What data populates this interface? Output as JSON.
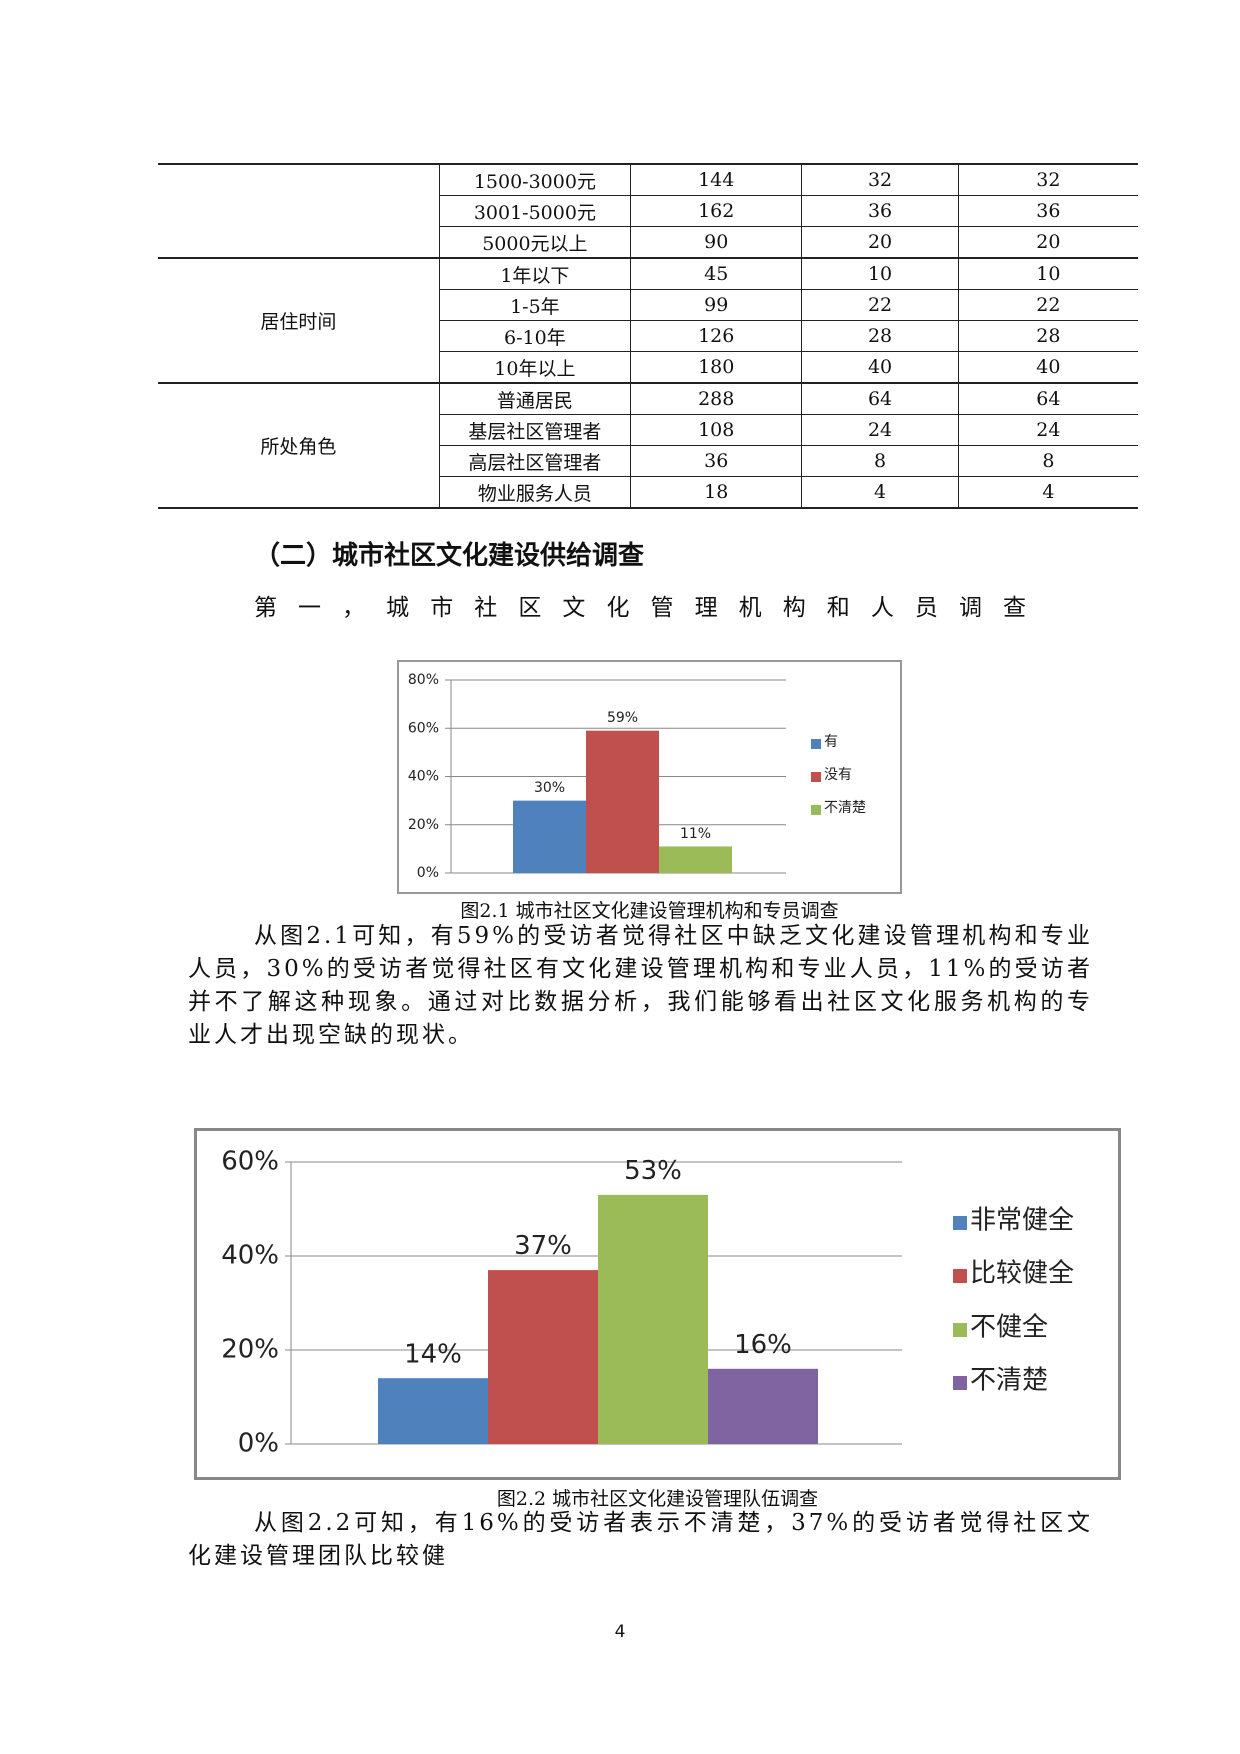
{
  "table": {
    "groups": [
      {
        "rows": [
          [
            "1500-3000元",
            144,
            32,
            32
          ],
          [
            "3001-5000元",
            162,
            36,
            36
          ],
          [
            "5000元以上",
            90,
            20,
            20
          ]
        ]
      },
      {
        "label": "居住时间",
        "rows": [
          [
            "1年以下",
            45,
            10,
            10
          ],
          [
            "1-5年",
            99,
            22,
            22
          ],
          [
            "6-10年",
            126,
            28,
            28
          ],
          [
            "10年以上",
            180,
            40,
            40
          ]
        ]
      },
      {
        "label": "所处角色",
        "rows": [
          [
            "普通居民",
            288,
            64,
            64
          ],
          [
            "基层社区管理者",
            108,
            24,
            24
          ],
          [
            "高层社区管理者",
            36,
            8,
            8
          ],
          [
            "物业服务人员",
            18,
            4,
            4
          ]
        ]
      }
    ]
  },
  "heading": "（二）城市社区文化建设供给调查",
  "subheading": "第一，城市社区文化管理机构和人员调查",
  "charts": [
    {
      "type": "bar",
      "caption": "图2.1 城市社区文化建设管理机构和专员调查",
      "grid": true,
      "ylim": [
        0,
        80
      ],
      "yticks": [
        {
          "value": 0,
          "label": "0%"
        },
        {
          "value": 20,
          "label": "20%"
        },
        {
          "value": 40,
          "label": "40%"
        },
        {
          "value": 60,
          "label": "60%"
        },
        {
          "value": 80,
          "label": "80%"
        }
      ],
      "series": [
        {
          "name": "有",
          "color": "#4f81bd",
          "values": [
            30
          ],
          "value_labels": [
            "30%"
          ]
        },
        {
          "name": "没有",
          "color": "#c0504d",
          "values": [
            59
          ],
          "value_labels": [
            "59%"
          ]
        },
        {
          "name": "不清楚",
          "color": "#9bbb59",
          "values": [
            11
          ],
          "value_labels": [
            "11%"
          ]
        }
      ]
    },
    {
      "type": "bar",
      "caption": "图2.2 城市社区文化建设管理队伍调查",
      "grid": true,
      "ylim": [
        0,
        60
      ],
      "yticks": [
        {
          "value": 0,
          "label": "0%"
        },
        {
          "value": 20,
          "label": "20%"
        },
        {
          "value": 40,
          "label": "40%"
        },
        {
          "value": 60,
          "label": "60%"
        }
      ],
      "series": [
        {
          "name": "非常健全",
          "color": "#4f81bd",
          "values": [
            14
          ],
          "value_labels": [
            "14%"
          ]
        },
        {
          "name": "比较健全",
          "color": "#c0504d",
          "values": [
            37
          ],
          "value_labels": [
            "37%"
          ]
        },
        {
          "name": "不健全",
          "color": "#9bbb59",
          "values": [
            53
          ],
          "value_labels": [
            "53%"
          ]
        },
        {
          "name": "不清楚",
          "color": "#8064a2",
          "values": [
            16
          ],
          "value_labels": [
            "16%"
          ]
        }
      ]
    }
  ],
  "paragraphs": [
    "从图2.1可知，有59%的受访者觉得社区中缺乏文化建设管理机构和专业人员，30%的受访者觉得社区有文化建设管理机构和专业人员，11%的受访者并不了解这种现象。通过对比数据分析，我们能够看出社区文化服务机构的专业人才出现空缺的现状。",
    "从图2.2可知，有16%的受访者表示不清楚，37%的受访者觉得社区文化建设管理团队比较健"
  ],
  "page_number": "4"
}
